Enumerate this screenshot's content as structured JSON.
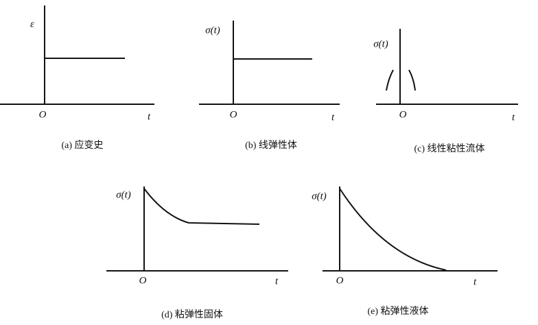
{
  "panels": [
    {
      "y_label": "ε",
      "origin": "O",
      "x_label": "t",
      "caption": "(a) 应变史"
    },
    {
      "y_label": "σ(t)",
      "origin": "O",
      "x_label": "t",
      "caption": "(b) 线弹性体"
    },
    {
      "y_label": "σ(t)",
      "origin": "O",
      "x_label": "t",
      "caption": "(c) 线性粘性流体"
    },
    {
      "y_label": "σ(t)",
      "origin": "O",
      "x_label": "t",
      "caption": "(d) 粘弹性固体"
    },
    {
      "y_label": "σ(t)",
      "origin": "O",
      "x_label": "t",
      "caption": "(e) 粘弹性液体"
    }
  ]
}
